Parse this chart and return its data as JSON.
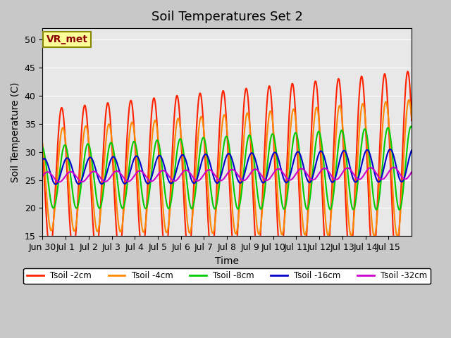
{
  "title": "Soil Temperatures Set 2",
  "xlabel": "Time",
  "ylabel": "Soil Temperature (C)",
  "annotation": "VR_met",
  "ylim": [
    15,
    52
  ],
  "yticks": [
    15,
    20,
    25,
    30,
    35,
    40,
    45,
    50
  ],
  "xtick_labels": [
    "Jun 30",
    "Jul 1",
    "Jul 2",
    "Jul 3",
    "Jul 4",
    "Jul 5",
    "Jul 6",
    "Jul 7",
    "Jul 8",
    "Jul 9",
    "Jul 10",
    "Jul 11",
    "Jul 12",
    "Jul 13",
    "Jul 14",
    "Jul 15"
  ],
  "series_colors": [
    "#ff2200",
    "#ff8800",
    "#00cc00",
    "#0000cc",
    "#cc00cc"
  ],
  "series_labels": [
    "Tsoil -2cm",
    "Tsoil -4cm",
    "Tsoil -8cm",
    "Tsoil -16cm",
    "Tsoil -32cm"
  ],
  "series_linewidths": [
    1.5,
    1.5,
    1.5,
    1.5,
    1.5
  ],
  "fig_bg_color": "#c8c8c8",
  "ax_bg_color": "#e8e8e8",
  "grid_color": "#ffffff",
  "annotation_bg": "#ffff99",
  "annotation_border": "#888800",
  "annotation_color": "#8b0000",
  "title_fontsize": 13,
  "label_fontsize": 10,
  "tick_fontsize": 9
}
